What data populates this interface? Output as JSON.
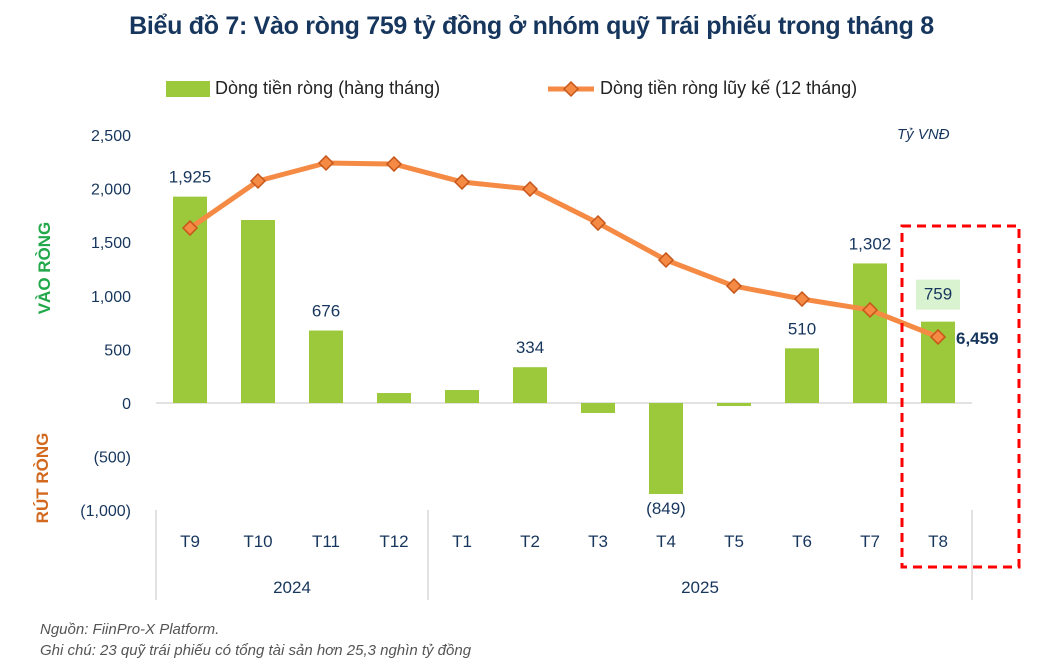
{
  "title": "Biểu đồ 7: Vào ròng 759 tỷ đồng ở nhóm quỹ Trái phiếu trong tháng 8",
  "unit_label": "Tỷ VNĐ",
  "side_labels": {
    "inflow": "VÀO RÒNG",
    "outflow": "RÚT RÒNG"
  },
  "colors": {
    "bar": "#9bc93b",
    "line": "#f58a45",
    "marker_border": "#c6561a",
    "text": "#17365d",
    "inflow_label": "#22a84a",
    "outflow_label": "#d2691e",
    "highlight_box": "#ff0000",
    "label_bg": "#d9f2d0"
  },
  "notes": {
    "source": "Nguồn: FiinPro-X Platform.",
    "note": "Ghi chú: 23 quỹ trái phiếu có tổng tài sản hơn 25,3 nghìn tỷ đồng"
  },
  "chart_data": {
    "type": "bar",
    "title": "Biểu đồ 7: Vào ròng 759 tỷ đồng ở nhóm quỹ Trái phiếu trong tháng 8",
    "xlabel": "",
    "ylabel": "Tỷ VNĐ",
    "ylim": [
      -1000,
      2500
    ],
    "yticks": [
      2500,
      2000,
      1500,
      1000,
      500,
      0,
      -500,
      -1000
    ],
    "ytick_labels": [
      "2,500",
      "2,000",
      "1,500",
      "1,000",
      "500",
      "0",
      "(500)",
      "(1,000)"
    ],
    "categories": [
      "T9",
      "T10",
      "T11",
      "T12",
      "T1",
      "T2",
      "T3",
      "T4",
      "T5",
      "T6",
      "T7",
      "T8"
    ],
    "year_groups": [
      {
        "label": "2024",
        "count": 4
      },
      {
        "label": "2025",
        "count": 8
      }
    ],
    "legend_position": "top",
    "grid": false,
    "series": [
      {
        "name": "Dòng tiền ròng (hàng tháng)",
        "type": "bar",
        "values": [
          1925,
          1707,
          676,
          93,
          121,
          334,
          -93,
          -849,
          -28,
          510,
          1302,
          759
        ],
        "data_labels": [
          "1,925",
          "",
          "676",
          "",
          "",
          "334",
          "",
          "(849)",
          "",
          "510",
          "1,302",
          "759"
        ]
      },
      {
        "name": "Dòng tiền ròng lũy kế (12 tháng)",
        "type": "line",
        "note": "plotted on a scaled secondary axis; only the final value is labeled",
        "values_plotted_primary_axis": [
          1632,
          2071,
          2239,
          2229,
          2062,
          1996,
          1679,
          1334,
          1091,
          970,
          868,
          616
        ],
        "end_label": "6,459"
      }
    ],
    "highlight": {
      "category": "T8",
      "style": "red dashed box"
    }
  }
}
